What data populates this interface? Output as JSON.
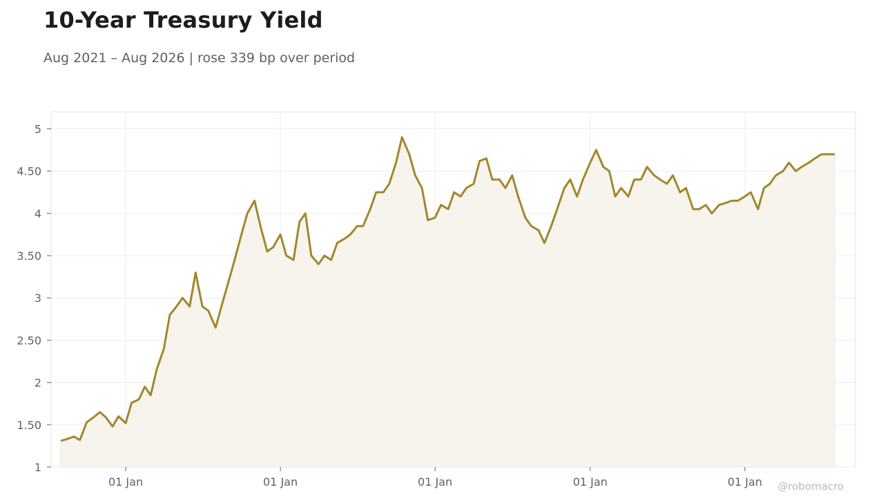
{
  "header": {
    "title": "10-Year Treasury Yield",
    "subtitle": "Aug 2021 – Aug 2026 | rose 339 bp over period"
  },
  "watermark": "@robomacro",
  "colors": {
    "line": "#a2862a",
    "area": "#f7f4ee",
    "grid": "#ececec",
    "text": "#5f6065"
  },
  "chart_data": {
    "type": "area",
    "title": "10-Year Treasury Yield",
    "ylim": [
      1,
      5.2
    ],
    "y_ticks": [
      1,
      1.5,
      2,
      2.5,
      3,
      3.5,
      4,
      4.5,
      5
    ],
    "y_tick_labels": [
      "1",
      "1.50",
      "2",
      "2.50",
      "3",
      "3.50",
      "4",
      "4.50",
      "5"
    ],
    "x_ticks": [
      "2022-01-01",
      "2023-01-01",
      "2024-01-01",
      "2025-01-01",
      "2026-01-01"
    ],
    "x_tick_labels": [
      "01 Jan",
      "01 Jan",
      "01 Jan",
      "01 Jan",
      "01 Jan"
    ],
    "xlim": [
      "2021-07-09",
      "2026-09-19"
    ],
    "grid": true,
    "series": [
      {
        "values": [
          [
            "2021-08-01",
            1.31
          ],
          [
            "2021-08-15",
            1.33
          ],
          [
            "2021-09-01",
            1.36
          ],
          [
            "2021-09-15",
            1.32
          ],
          [
            "2021-10-01",
            1.53
          ],
          [
            "2021-10-15",
            1.58
          ],
          [
            "2021-11-01",
            1.65
          ],
          [
            "2021-11-15",
            1.59
          ],
          [
            "2021-12-01",
            1.48
          ],
          [
            "2021-12-15",
            1.6
          ],
          [
            "2022-01-01",
            1.52
          ],
          [
            "2022-01-15",
            1.76
          ],
          [
            "2022-02-01",
            1.8
          ],
          [
            "2022-02-15",
            1.95
          ],
          [
            "2022-03-01",
            1.85
          ],
          [
            "2022-03-15",
            2.15
          ],
          [
            "2022-04-01",
            2.4
          ],
          [
            "2022-04-15",
            2.8
          ],
          [
            "2022-05-01",
            2.9
          ],
          [
            "2022-05-15",
            3.0
          ],
          [
            "2022-06-01",
            2.9
          ],
          [
            "2022-06-15",
            3.3
          ],
          [
            "2022-07-01",
            2.9
          ],
          [
            "2022-07-15",
            2.85
          ],
          [
            "2022-08-01",
            2.65
          ],
          [
            "2022-08-15",
            2.9
          ],
          [
            "2022-09-01",
            3.2
          ],
          [
            "2022-09-15",
            3.45
          ],
          [
            "2022-10-01",
            3.75
          ],
          [
            "2022-10-15",
            4.0
          ],
          [
            "2022-11-01",
            4.15
          ],
          [
            "2022-11-15",
            3.85
          ],
          [
            "2022-12-01",
            3.55
          ],
          [
            "2022-12-15",
            3.6
          ],
          [
            "2023-01-01",
            3.75
          ],
          [
            "2023-01-15",
            3.5
          ],
          [
            "2023-02-01",
            3.45
          ],
          [
            "2023-02-15",
            3.9
          ],
          [
            "2023-03-01",
            4.0
          ],
          [
            "2023-03-15",
            3.5
          ],
          [
            "2023-04-01",
            3.4
          ],
          [
            "2023-04-15",
            3.5
          ],
          [
            "2023-05-01",
            3.45
          ],
          [
            "2023-05-15",
            3.65
          ],
          [
            "2023-06-01",
            3.7
          ],
          [
            "2023-06-15",
            3.75
          ],
          [
            "2023-07-01",
            3.85
          ],
          [
            "2023-07-15",
            3.85
          ],
          [
            "2023-08-01",
            4.05
          ],
          [
            "2023-08-15",
            4.25
          ],
          [
            "2023-09-01",
            4.25
          ],
          [
            "2023-09-15",
            4.35
          ],
          [
            "2023-10-01",
            4.6
          ],
          [
            "2023-10-15",
            4.9
          ],
          [
            "2023-11-01",
            4.7
          ],
          [
            "2023-11-15",
            4.45
          ],
          [
            "2023-12-01",
            4.3
          ],
          [
            "2023-12-15",
            3.92
          ],
          [
            "2024-01-01",
            3.95
          ],
          [
            "2024-01-15",
            4.1
          ],
          [
            "2024-02-01",
            4.05
          ],
          [
            "2024-02-15",
            4.25
          ],
          [
            "2024-03-01",
            4.2
          ],
          [
            "2024-03-15",
            4.3
          ],
          [
            "2024-04-01",
            4.35
          ],
          [
            "2024-04-15",
            4.62
          ],
          [
            "2024-05-01",
            4.65
          ],
          [
            "2024-05-15",
            4.4
          ],
          [
            "2024-06-01",
            4.4
          ],
          [
            "2024-06-15",
            4.3
          ],
          [
            "2024-07-01",
            4.45
          ],
          [
            "2024-07-15",
            4.2
          ],
          [
            "2024-08-01",
            3.95
          ],
          [
            "2024-08-15",
            3.85
          ],
          [
            "2024-09-01",
            3.8
          ],
          [
            "2024-09-15",
            3.65
          ],
          [
            "2024-10-01",
            3.85
          ],
          [
            "2024-10-15",
            4.05
          ],
          [
            "2024-11-01",
            4.3
          ],
          [
            "2024-11-15",
            4.4
          ],
          [
            "2024-12-01",
            4.2
          ],
          [
            "2024-12-15",
            4.4
          ],
          [
            "2025-01-01",
            4.6
          ],
          [
            "2025-01-15",
            4.75
          ],
          [
            "2025-02-01",
            4.55
          ],
          [
            "2025-02-15",
            4.5
          ],
          [
            "2025-03-01",
            4.2
          ],
          [
            "2025-03-15",
            4.3
          ],
          [
            "2025-04-01",
            4.2
          ],
          [
            "2025-04-15",
            4.4
          ],
          [
            "2025-05-01",
            4.4
          ],
          [
            "2025-05-15",
            4.55
          ],
          [
            "2025-06-01",
            4.45
          ],
          [
            "2025-06-15",
            4.4
          ],
          [
            "2025-07-01",
            4.35
          ],
          [
            "2025-07-15",
            4.45
          ],
          [
            "2025-08-01",
            4.25
          ],
          [
            "2025-08-15",
            4.3
          ],
          [
            "2025-09-01",
            4.05
          ],
          [
            "2025-09-15",
            4.05
          ],
          [
            "2025-10-01",
            4.1
          ],
          [
            "2025-10-15",
            4.0
          ],
          [
            "2025-11-01",
            4.1
          ],
          [
            "2025-11-15",
            4.12
          ],
          [
            "2025-12-01",
            4.15
          ],
          [
            "2025-12-15",
            4.15
          ],
          [
            "2026-01-01",
            4.2
          ],
          [
            "2026-01-15",
            4.25
          ],
          [
            "2026-02-01",
            4.05
          ],
          [
            "2026-02-15",
            4.3
          ],
          [
            "2026-03-01",
            4.35
          ],
          [
            "2026-03-15",
            4.45
          ],
          [
            "2026-04-01",
            4.5
          ],
          [
            "2026-04-15",
            4.6
          ],
          [
            "2026-05-01",
            4.5
          ],
          [
            "2026-05-15",
            4.55
          ],
          [
            "2026-06-01",
            4.6
          ],
          [
            "2026-06-15",
            4.65
          ],
          [
            "2026-07-01",
            4.7
          ],
          [
            "2026-07-15",
            4.7
          ],
          [
            "2026-08-01",
            4.7
          ]
        ]
      }
    ]
  }
}
